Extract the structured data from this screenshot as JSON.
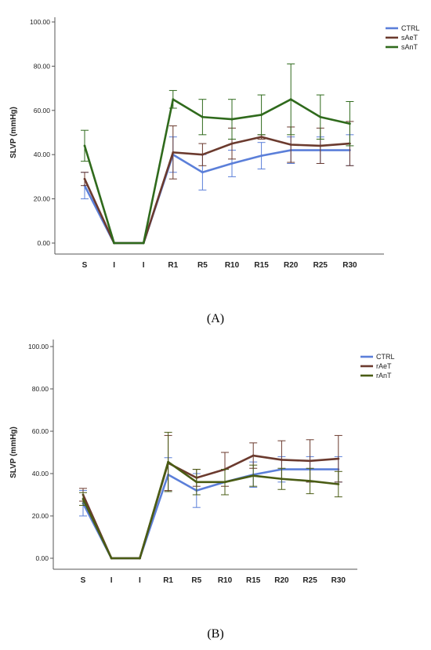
{
  "chart_data": [
    {
      "type": "line",
      "panel_label": "(A)",
      "ylabel": "SLVP (mmHg)",
      "ylim": [
        0,
        100
      ],
      "yticks": [
        "0.00",
        "20.00",
        "40.00",
        "60.00",
        "80.00",
        "100.00"
      ],
      "categories": [
        "S",
        "I",
        "I",
        "R1",
        "R5",
        "R10",
        "R15",
        "R20",
        "R25",
        "R30"
      ],
      "legend_position": "top-right",
      "grid": false,
      "series": [
        {
          "name": "CTRL",
          "color": "#5b7fd9",
          "values": [
            26,
            0,
            0,
            40,
            32,
            36,
            39.5,
            42,
            42,
            42
          ],
          "err": [
            6,
            0,
            0,
            8,
            8,
            6,
            6,
            6,
            6,
            7
          ]
        },
        {
          "name": "sAeT",
          "color": "#6b3a2e",
          "values": [
            29,
            0,
            0,
            41,
            40,
            45,
            48,
            44.5,
            44,
            45
          ],
          "err": [
            3,
            0,
            0,
            12,
            5,
            7,
            1,
            8,
            8,
            10
          ]
        },
        {
          "name": "sAnT",
          "color": "#2f6a1c",
          "values": [
            44,
            0,
            0,
            65,
            57,
            56,
            58,
            65,
            57,
            54
          ],
          "err": [
            7,
            0,
            0,
            4,
            8,
            9,
            9,
            16,
            10,
            10
          ]
        }
      ]
    },
    {
      "type": "line",
      "panel_label": "(B)",
      "ylabel": "SLVP (mmHg)",
      "ylim": [
        0,
        100
      ],
      "yticks": [
        "0.00",
        "20.00",
        "40.00",
        "60.00",
        "80.00",
        "100.00"
      ],
      "categories": [
        "S",
        "I",
        "I",
        "R1",
        "R5",
        "R10",
        "R15",
        "R20",
        "R25",
        "R30"
      ],
      "legend_position": "top-right",
      "grid": false,
      "series": [
        {
          "name": "CTRL",
          "color": "#5b7fd9",
          "values": [
            26,
            0,
            0,
            39.5,
            32,
            36,
            39.5,
            42,
            42,
            42
          ],
          "err": [
            6,
            0,
            0,
            8,
            8,
            6,
            6,
            6,
            6,
            6
          ]
        },
        {
          "name": "rAeT",
          "color": "#6b3a2e",
          "values": [
            30,
            0,
            0,
            45,
            38,
            42,
            48.5,
            46.5,
            46,
            47
          ],
          "err": [
            3,
            0,
            0,
            13,
            4,
            8,
            6,
            9,
            10,
            11
          ]
        },
        {
          "name": "rAnT",
          "color": "#4a5c14",
          "values": [
            28,
            0,
            0,
            45.5,
            36,
            36,
            39,
            37.5,
            36.5,
            35
          ],
          "err": [
            3,
            0,
            0,
            14,
            6,
            6,
            5,
            5,
            6,
            6
          ]
        }
      ]
    }
  ]
}
